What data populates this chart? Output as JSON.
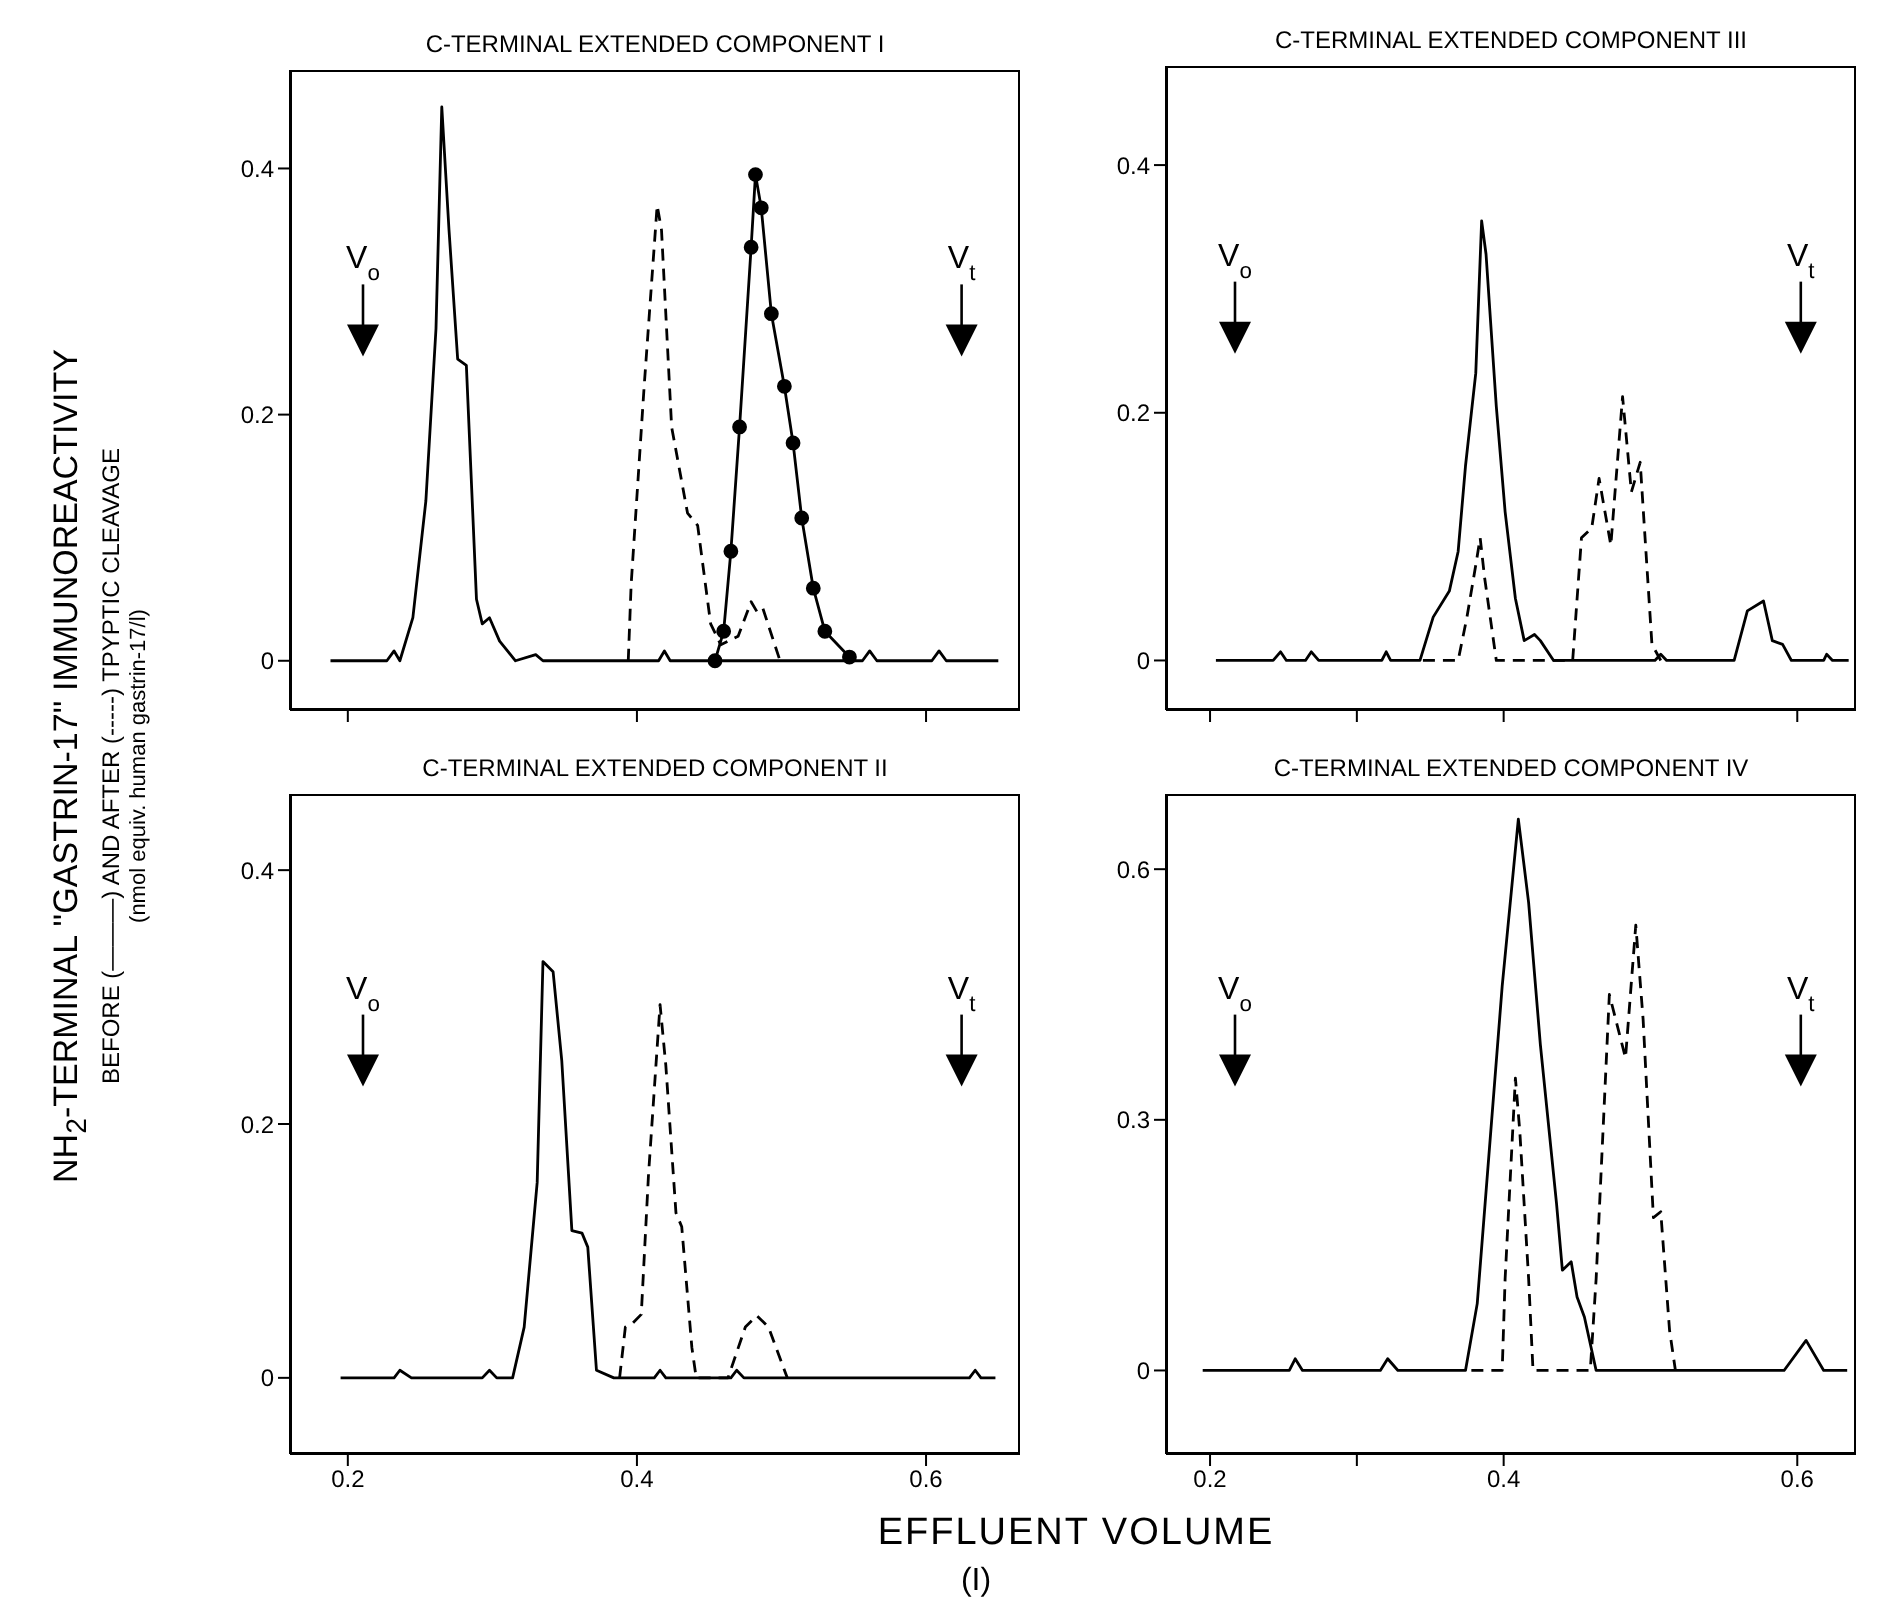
{
  "chart_data": [
    {
      "type": "line",
      "title": "C-TERMINAL EXTENDED COMPONENT I",
      "ylabel": "NH$_{2}$-TERMINAL ''GASTRIN-17'' IMMUNOREACTIVITY\nBEFORE (———) AND AFTER (-----) TPYPTIC CLEAVAGE\n(nmol equiv. human gastrin-17/l)",
      "xlim": [
        0.16,
        0.665
      ],
      "ylim": [
        -0.04,
        0.48
      ],
      "xticks": [
        0.2,
        0.4,
        0.6
      ],
      "yticks": [
        0,
        0.2,
        0.4
      ],
      "tick_labels": "y",
      "series": [
        {
          "color": "#000000",
          "line_style": "solid",
          "x": [
            0.188,
            0.227,
            0.232,
            0.236,
            0.245,
            0.254,
            0.261,
            0.265,
            0.27,
            0.276,
            0.282,
            0.289,
            0.293,
            0.298,
            0.305,
            0.316,
            0.33,
            0.335,
            0.415,
            0.419,
            0.423,
            0.556,
            0.561,
            0.566,
            0.604,
            0.609,
            0.614,
            0.65
          ],
          "values": [
            0,
            0,
            0.008,
            0,
            0.035,
            0.13,
            0.27,
            0.45,
            0.35,
            0.245,
            0.24,
            0.05,
            0.03,
            0.035,
            0.016,
            0,
            0.005,
            0,
            0,
            0.008,
            0,
            0,
            0.008,
            0,
            0,
            0.008,
            0,
            0
          ]
        },
        {
          "color": "#000000",
          "line_style": "dashed",
          "x": [
            0.394,
            0.396,
            0.405,
            0.414,
            0.417,
            0.424,
            0.435,
            0.442,
            0.451,
            0.458,
            0.47,
            0.479,
            0.483,
            0.487,
            0.499
          ],
          "values": [
            0,
            0.062,
            0.223,
            0.37,
            0.35,
            0.19,
            0.12,
            0.11,
            0.03,
            0.013,
            0.02,
            0.048,
            0.04,
            0.043,
            0
          ]
        },
        {
          "color": "#000000",
          "line_style": "solid",
          "marker": "circle",
          "x": [
            0.454,
            0.46,
            0.465,
            0.471,
            0.479,
            0.482,
            0.486,
            0.493,
            0.502,
            0.508,
            0.514,
            0.522,
            0.53,
            0.547
          ],
          "values": [
            0,
            0.024,
            0.089,
            0.19,
            0.336,
            0.395,
            0.368,
            0.282,
            0.223,
            0.177,
            0.116,
            0.059,
            0.024,
            0.003
          ]
        }
      ],
      "annotations": [
        "V$_{o}$",
        "V$_{t}$"
      ]
    },
    {
      "type": "line",
      "title": "C-TERMINAL EXTENDED COMPONENT III",
      "xlim": [
        0.17,
        0.64
      ],
      "ylim": [
        -0.04,
        0.48
      ],
      "xticks": [
        0.2,
        {
          "value": 0.3,
          "label": null
        },
        0.4,
        0.6
      ],
      "yticks": [
        0,
        0.2,
        0.4
      ],
      "tick_labels": "y",
      "series": [
        {
          "color": "#000000",
          "line_style": "solid",
          "x": [
            0.204,
            0.243,
            0.248,
            0.252,
            0.265,
            0.269,
            0.274,
            0.317,
            0.32,
            0.323,
            0.343,
            0.352,
            0.363,
            0.369,
            0.374,
            0.381,
            0.385,
            0.388,
            0.395,
            0.401,
            0.408,
            0.414,
            0.421,
            0.425,
            0.434,
            0.503,
            0.507,
            0.511,
            0.557,
            0.566,
            0.577,
            0.583,
            0.59,
            0.596,
            0.618,
            0.62,
            0.624,
            0.635
          ],
          "values": [
            0,
            0,
            0.007,
            0,
            0,
            0.007,
            0,
            0,
            0.007,
            0,
            0,
            0.035,
            0.056,
            0.088,
            0.157,
            0.232,
            0.355,
            0.328,
            0.205,
            0.12,
            0.05,
            0.016,
            0.021,
            0.016,
            0,
            0,
            0.005,
            0,
            0,
            0.04,
            0.048,
            0.016,
            0.013,
            0,
            0,
            0.005,
            0,
            0
          ]
        },
        {
          "color": "#000000",
          "line_style": "dashed",
          "x": [
            0.345,
            0.369,
            0.375,
            0.381,
            0.384,
            0.387,
            0.395,
            0.447,
            0.453,
            0.46,
            0.465,
            0.473,
            0.481,
            0.487,
            0.493,
            0.501,
            0.507
          ],
          "values": [
            0,
            0,
            0.035,
            0.077,
            0.099,
            0.067,
            0,
            0,
            0.099,
            0.107,
            0.147,
            0.093,
            0.213,
            0.136,
            0.16,
            0.013,
            0
          ]
        }
      ],
      "annotations": [
        "V$_{o}$",
        "V$_{t}$"
      ]
    },
    {
      "type": "line",
      "title": "C-TERMINAL EXTENDED COMPONENT II",
      "xlabel": "EFFLUENT VOLUME",
      "xlim": [
        0.16,
        0.665
      ],
      "ylim": [
        -0.06,
        0.46
      ],
      "xticks": [
        0.2,
        0.4,
        0.6
      ],
      "yticks": [
        0,
        0.2,
        0.4
      ],
      "series": [
        {
          "color": "#000000",
          "line_style": "solid",
          "x": [
            0.195,
            0.232,
            0.236,
            0.244,
            0.293,
            0.298,
            0.303,
            0.314,
            0.322,
            0.331,
            0.335,
            0.342,
            0.348,
            0.355,
            0.362,
            0.366,
            0.372,
            0.384,
            0.412,
            0.416,
            0.42,
            0.465,
            0.469,
            0.474,
            0.63,
            0.634,
            0.638,
            0.648
          ],
          "values": [
            0,
            0,
            0.006,
            0,
            0,
            0.006,
            0,
            0,
            0.04,
            0.154,
            0.328,
            0.32,
            0.25,
            0.116,
            0.114,
            0.103,
            0.006,
            0,
            0,
            0.006,
            0,
            0,
            0.006,
            0,
            0,
            0.006,
            0,
            0
          ]
        },
        {
          "color": "#000000",
          "line_style": "dashed",
          "x": [
            0.388,
            0.392,
            0.397,
            0.403,
            0.408,
            0.416,
            0.42,
            0.427,
            0.431,
            0.438,
            0.441,
            0.463,
            0.475,
            0.483,
            0.491,
            0.504
          ],
          "values": [
            0,
            0.04,
            0.043,
            0.05,
            0.16,
            0.294,
            0.246,
            0.13,
            0.119,
            0.024,
            0,
            0,
            0.04,
            0.049,
            0.04,
            0
          ]
        }
      ],
      "annotations": [
        "V$_{o}$",
        "V$_{t}$",
        "(I)"
      ]
    },
    {
      "type": "line",
      "title": "C-TERMINAL EXTENDED COMPONENT IV",
      "xlim": [
        0.17,
        0.64
      ],
      "ylim": [
        -0.1,
        0.69
      ],
      "xticks": [
        0.2,
        {
          "value": 0.3,
          "label": null
        },
        0.4,
        0.6
      ],
      "yticks": [
        0,
        0.3,
        0.6
      ],
      "series": [
        {
          "color": "#000000",
          "line_style": "solid",
          "x": [
            0.195,
            0.254,
            0.258,
            0.263,
            0.316,
            0.321,
            0.328,
            0.374,
            0.382,
            0.388,
            0.399,
            0.41,
            0.417,
            0.425,
            0.436,
            0.44,
            0.446,
            0.45,
            0.455,
            0.463,
            0.591,
            0.606,
            0.618,
            0.634
          ],
          "values": [
            0,
            0,
            0.014,
            0,
            0,
            0.014,
            0,
            0,
            0.08,
            0.214,
            0.46,
            0.66,
            0.56,
            0.39,
            0.2,
            0.12,
            0.13,
            0.088,
            0.064,
            0,
            0,
            0.036,
            0,
            0
          ]
        },
        {
          "color": "#000000",
          "line_style": "dashed",
          "x": [
            0.378,
            0.399,
            0.401,
            0.408,
            0.411,
            0.417,
            0.42,
            0.459,
            0.463,
            0.472,
            0.483,
            0.49,
            0.495,
            0.502,
            0.507,
            0.513,
            0.517
          ],
          "values": [
            0,
            0,
            0.11,
            0.35,
            0.286,
            0.11,
            0,
            0,
            0.11,
            0.45,
            0.374,
            0.533,
            0.42,
            0.183,
            0.19,
            0.048,
            0
          ]
        }
      ],
      "annotations": [
        "V$_{o}$",
        "V$_{t}$"
      ]
    }
  ]
}
